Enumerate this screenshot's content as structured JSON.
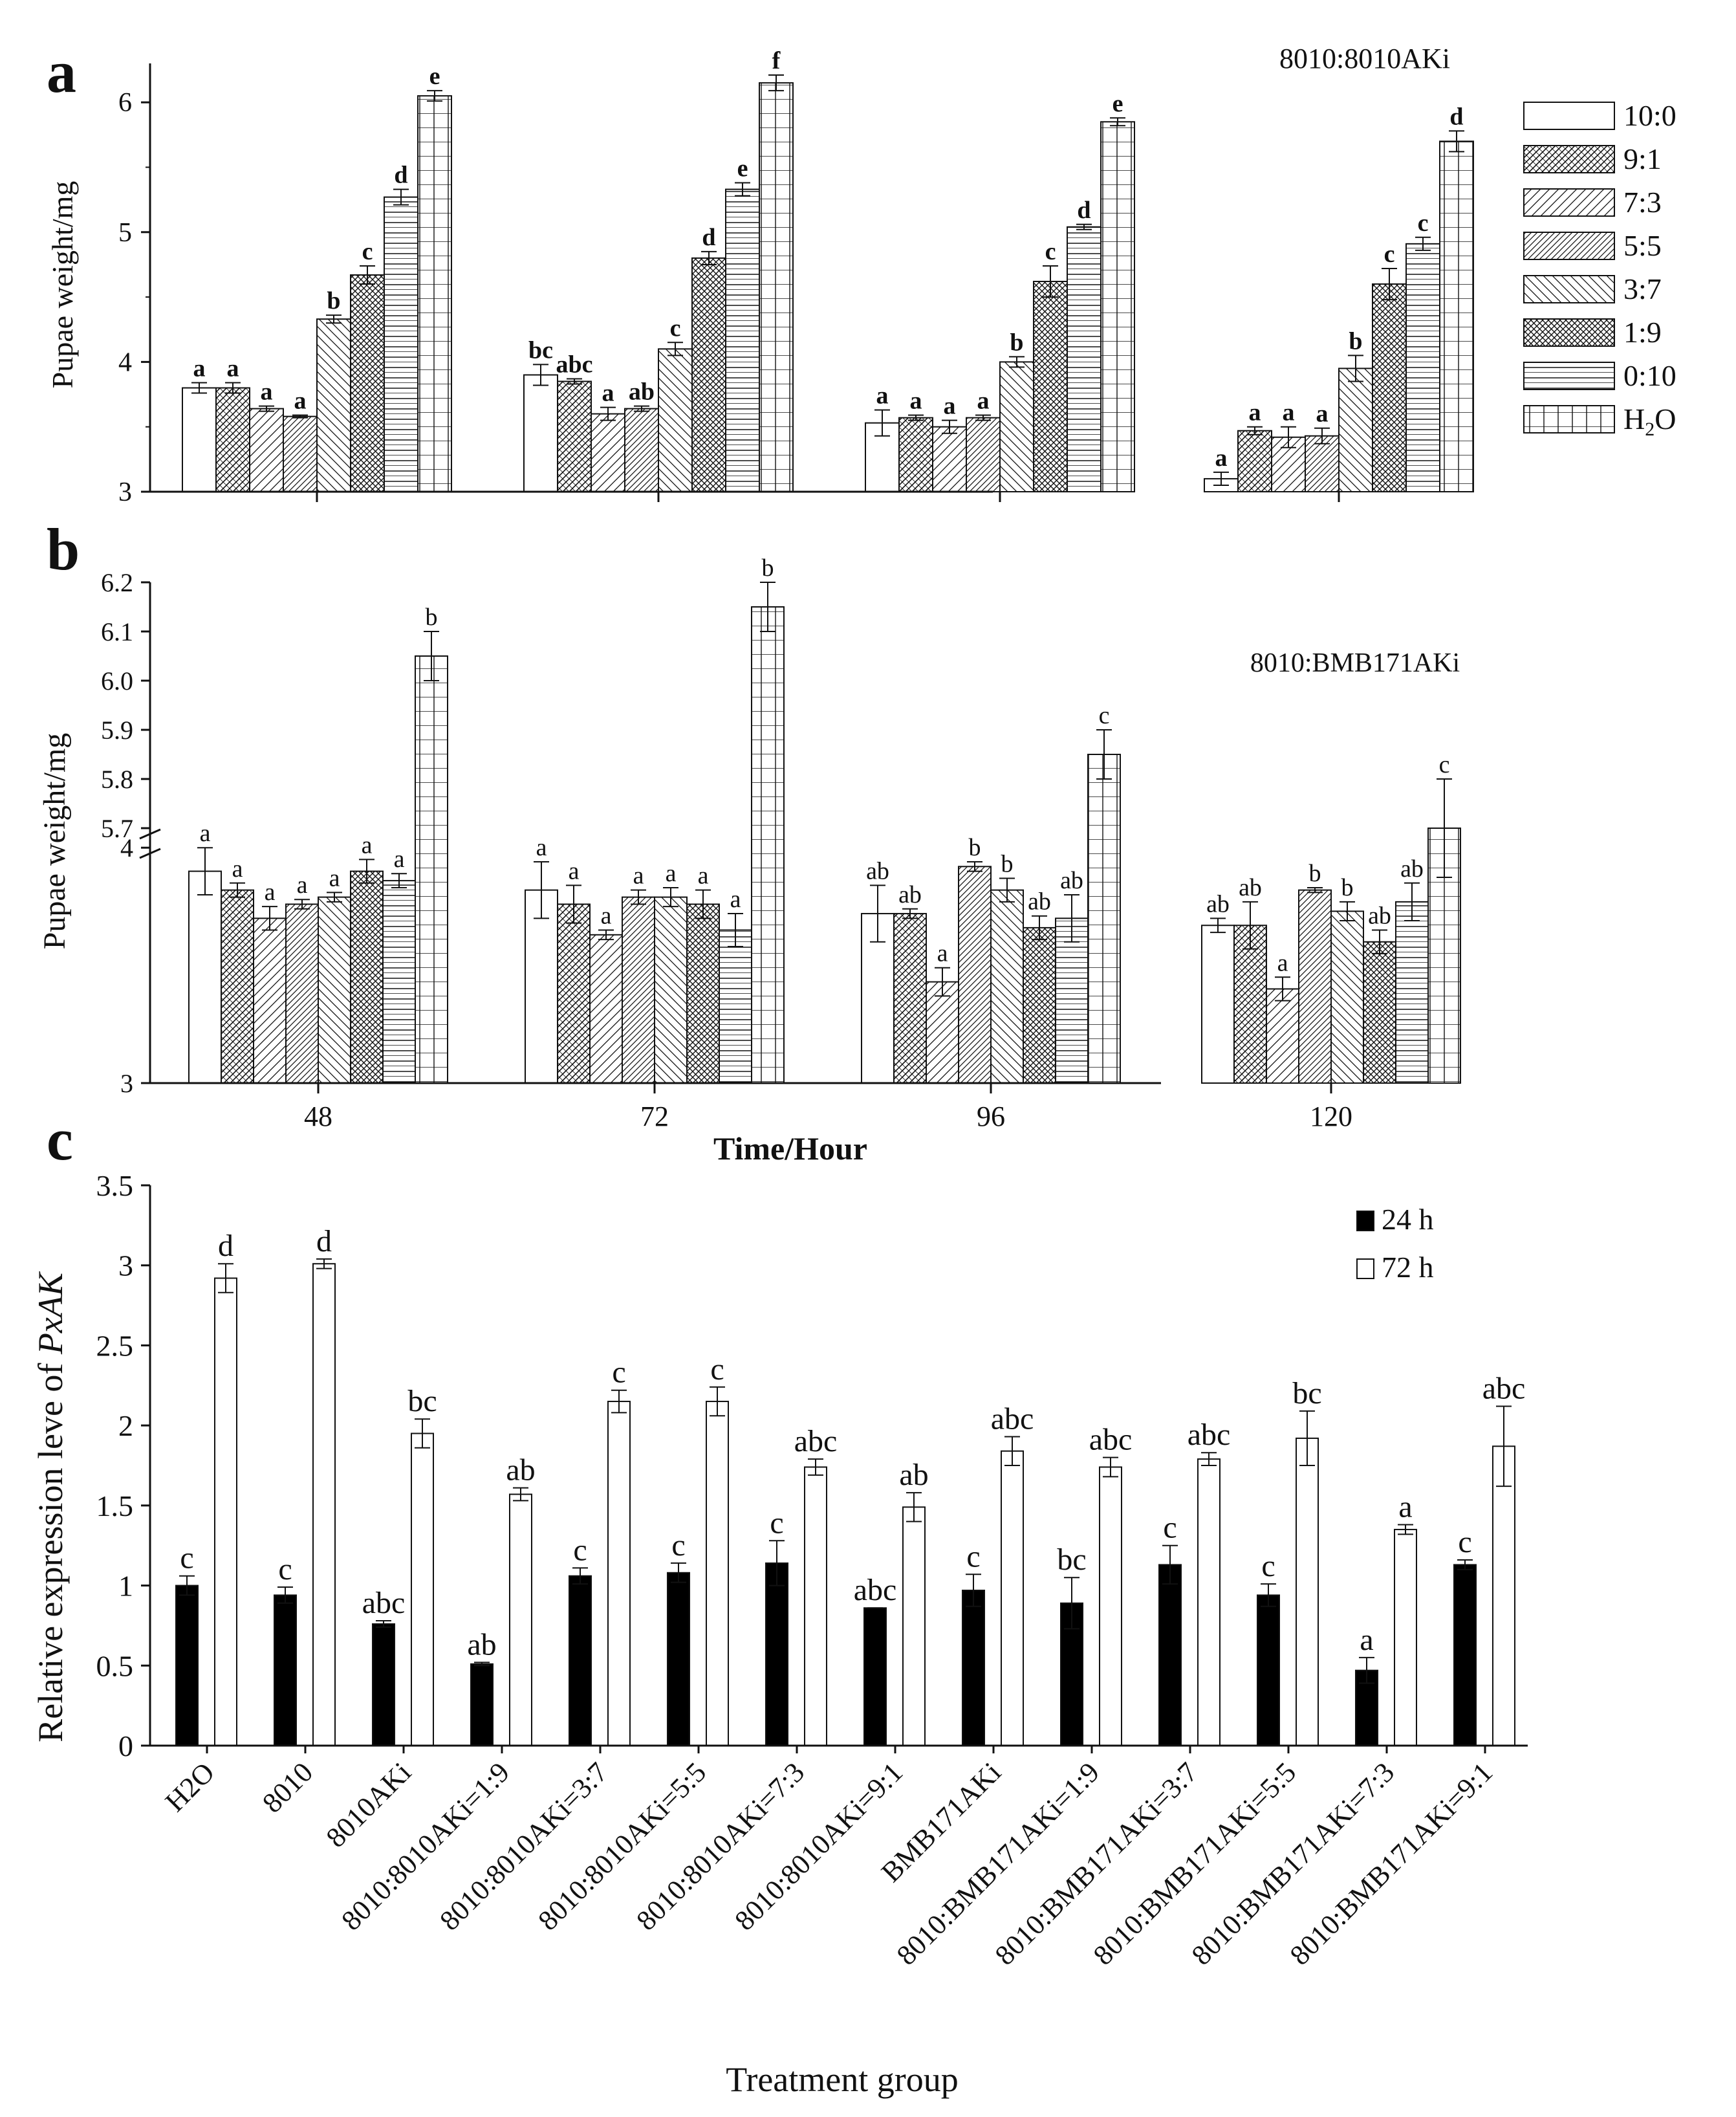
{
  "chart_data": [
    {
      "panel": "a",
      "type": "bar",
      "annotation": "8010:8010AKi",
      "ylabel": "Pupae weight/mg",
      "xlabel": "",
      "ylim": [
        3,
        6.3
      ],
      "yticks": [
        "3",
        "4",
        "5",
        "6"
      ],
      "categories": [
        "48",
        "72",
        "96",
        "120"
      ],
      "show_category_labels": false,
      "legend": [
        "10:0",
        "9:1",
        "7:3",
        "5:5",
        "3:7",
        "1:9",
        "0:10",
        "H2O"
      ],
      "series": [
        {
          "name": "10:0",
          "values": [
            3.8,
            3.9,
            3.53,
            3.1
          ],
          "errors": [
            0.04,
            0.08,
            0.1,
            0.05
          ],
          "letters": [
            "a",
            "bc",
            "a",
            "a"
          ]
        },
        {
          "name": "9:1",
          "values": [
            3.8,
            3.85,
            3.57,
            3.47
          ],
          "errors": [
            0.04,
            0.02,
            0.02,
            0.03
          ],
          "letters": [
            "a",
            "abc",
            "a",
            "a"
          ]
        },
        {
          "name": "7:3",
          "values": [
            3.64,
            3.6,
            3.5,
            3.42
          ],
          "errors": [
            0.02,
            0.05,
            0.05,
            0.08
          ],
          "letters": [
            "a",
            "a",
            "a",
            "a"
          ]
        },
        {
          "name": "5:5",
          "values": [
            3.58,
            3.64,
            3.57,
            3.43
          ],
          "errors": [
            0.01,
            0.02,
            0.02,
            0.06
          ],
          "letters": [
            "a",
            "ab",
            "a",
            "a"
          ]
        },
        {
          "name": "3:7",
          "values": [
            4.33,
            4.1,
            4.0,
            3.95
          ],
          "errors": [
            0.03,
            0.05,
            0.04,
            0.1
          ],
          "letters": [
            "b",
            "c",
            "b",
            "b"
          ]
        },
        {
          "name": "1:9",
          "values": [
            4.67,
            4.8,
            4.62,
            4.6
          ],
          "errors": [
            0.07,
            0.05,
            0.12,
            0.12
          ],
          "letters": [
            "c",
            "d",
            "c",
            "c"
          ]
        },
        {
          "name": "0:10",
          "values": [
            5.27,
            5.33,
            5.04,
            4.91
          ],
          "errors": [
            0.06,
            0.05,
            0.02,
            0.05
          ],
          "letters": [
            "d",
            "e",
            "d",
            "c"
          ]
        },
        {
          "name": "H2O",
          "values": [
            6.05,
            6.15,
            5.85,
            5.7
          ],
          "errors": [
            0.04,
            0.06,
            0.03,
            0.08
          ],
          "letters": [
            "e",
            "f",
            "e",
            "d"
          ]
        }
      ]
    },
    {
      "panel": "b",
      "type": "bar",
      "annotation": "8010:BMB171AKi",
      "ylabel": "Pupae weight/mg",
      "xlabel": "Time/Hour",
      "axis_break": true,
      "ylim_lower": [
        3,
        4.05
      ],
      "ylim_upper": [
        5.65,
        6.2
      ],
      "yticks_lower": [
        "3",
        "4"
      ],
      "yticks_upper": [
        "5.7",
        "5.8",
        "5.9",
        "6.0",
        "6.1",
        "6.2"
      ],
      "categories": [
        "48",
        "72",
        "96",
        "120"
      ],
      "show_category_labels": true,
      "series": [
        {
          "name": "10:0",
          "values": [
            3.9,
            3.82,
            3.72,
            3.67
          ],
          "errors": [
            0.1,
            0.12,
            0.12,
            0.03
          ],
          "letters": [
            "a",
            "a",
            "ab",
            "ab"
          ]
        },
        {
          "name": "9:1",
          "values": [
            3.82,
            3.76,
            3.72,
            3.67
          ],
          "errors": [
            0.03,
            0.08,
            0.02,
            0.1
          ],
          "letters": [
            "a",
            "a",
            "ab",
            "ab"
          ]
        },
        {
          "name": "7:3",
          "values": [
            3.7,
            3.63,
            3.43,
            3.4
          ],
          "errors": [
            0.05,
            0.02,
            0.06,
            0.05
          ],
          "letters": [
            "a",
            "a",
            "a",
            "a"
          ]
        },
        {
          "name": "5:5",
          "values": [
            3.76,
            3.79,
            3.92,
            3.82
          ],
          "errors": [
            0.02,
            0.03,
            0.02,
            0.01
          ],
          "letters": [
            "a",
            "a",
            "b",
            "b"
          ]
        },
        {
          "name": "3:7",
          "values": [
            3.79,
            3.79,
            3.82,
            3.73
          ],
          "errors": [
            0.02,
            0.04,
            0.05,
            0.04
          ],
          "letters": [
            "a",
            "a",
            "b",
            "b"
          ]
        },
        {
          "name": "1:9",
          "values": [
            3.9,
            3.76,
            3.66,
            3.6
          ],
          "errors": [
            0.05,
            0.06,
            0.05,
            0.05
          ],
          "letters": [
            "a",
            "a",
            "ab",
            "ab"
          ]
        },
        {
          "name": "0:10",
          "values": [
            3.86,
            3.65,
            3.7,
            3.77
          ],
          "errors": [
            0.03,
            0.07,
            0.1,
            0.08
          ],
          "letters": [
            "a",
            "a",
            "ab",
            "ab"
          ]
        },
        {
          "name": "H2O",
          "values": [
            6.05,
            6.15,
            5.85,
            5.7
          ],
          "errors": [
            0.05,
            0.05,
            0.05,
            0.1
          ],
          "letters": [
            "b",
            "b",
            "c",
            "c"
          ]
        }
      ]
    },
    {
      "panel": "c",
      "type": "bar",
      "ylabel_prefix": "Relative expression leve of ",
      "ylabel_gene": "PxAK",
      "xlabel": "Treatment group",
      "ylim": [
        0,
        3.5
      ],
      "yticks": [
        "0",
        "0.5",
        "1",
        "1.5",
        "2",
        "2.5",
        "3",
        "3.5"
      ],
      "categories": [
        "H2O",
        "8010",
        "8010AKi",
        "8010:8010AKi=1:9",
        "8010:8010AKi=3:7",
        "8010:8010AKi=5:5",
        "8010:8010AKi=7:3",
        "8010:8010AKi=9:1",
        "BMB171AKi",
        "8010:BMB171AKi=1:9",
        "8010:BMB171AKi=3:7",
        "8010:BMB171AKi=5:5",
        "8010:BMB171AKi=7:3",
        "8010:BMB171AKi=9:1"
      ],
      "series": [
        {
          "name": "24 h",
          "color": "#000000",
          "values": [
            1.0,
            0.94,
            0.76,
            0.51,
            1.06,
            1.08,
            1.14,
            0.86,
            0.97,
            0.89,
            1.13,
            0.94,
            0.47,
            1.13
          ],
          "errors": [
            0.06,
            0.05,
            0.02,
            0.01,
            0.05,
            0.06,
            0.14,
            0.0,
            0.1,
            0.16,
            0.12,
            0.07,
            0.08,
            0.03
          ],
          "letters": [
            "c",
            "c",
            "abc",
            "ab",
            "c",
            "c",
            "c",
            "abc",
            "c",
            "bc",
            "c",
            "c",
            "a",
            "c"
          ]
        },
        {
          "name": "72 h",
          "color": "#ffffff",
          "values": [
            2.92,
            3.01,
            1.95,
            1.57,
            2.15,
            2.15,
            1.74,
            1.49,
            1.84,
            1.74,
            1.79,
            1.92,
            1.35,
            1.87
          ],
          "errors": [
            0.09,
            0.03,
            0.09,
            0.04,
            0.07,
            0.09,
            0.05,
            0.09,
            0.09,
            0.06,
            0.04,
            0.17,
            0.03,
            0.25
          ],
          "letters": [
            "d",
            "d",
            "bc",
            "ab",
            "c",
            "c",
            "abc",
            "ab",
            "abc",
            "abc",
            "abc",
            "bc",
            "a",
            "abc"
          ]
        }
      ]
    }
  ]
}
